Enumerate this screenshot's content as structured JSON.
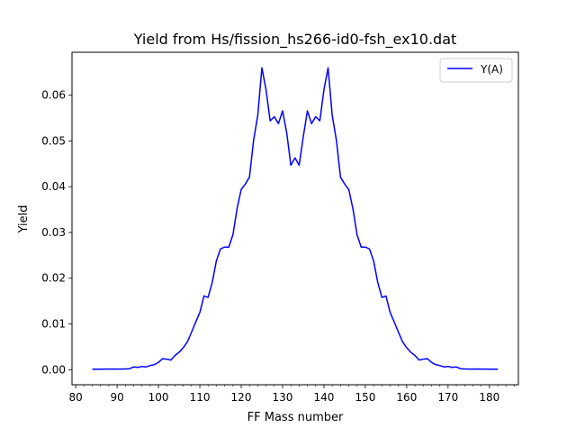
{
  "chart_data": {
    "type": "line",
    "title": "Yield from  Hs/fission_hs266-id0-fsh_ex10.dat",
    "xlabel": "FF Mass number",
    "ylabel": "Yield",
    "xlim": [
      79.1,
      187.0
    ],
    "ylim": [
      -0.0033,
      0.0694
    ],
    "xticks": [
      80,
      90,
      100,
      110,
      120,
      130,
      140,
      150,
      160,
      170,
      180
    ],
    "xtick_labels": [
      "80",
      "90",
      "100",
      "110",
      "120",
      "130",
      "140",
      "150",
      "160",
      "170",
      "180"
    ],
    "yticks": [
      0.0,
      0.01,
      0.02,
      0.03,
      0.04,
      0.05,
      0.06
    ],
    "ytick_labels": [
      "0.00",
      "0.01",
      "0.02",
      "0.03",
      "0.04",
      "0.05",
      "0.06"
    ],
    "minor_xtick_step": 2,
    "grid": false,
    "legend_position": "top-right",
    "series": [
      {
        "name": "Y(A)",
        "color": "#0000ff",
        "x": [
          84,
          85,
          86,
          87,
          88,
          89,
          90,
          91,
          92,
          93,
          94,
          95,
          96,
          97,
          98,
          99,
          100,
          101,
          102,
          103,
          104,
          105,
          106,
          107,
          108,
          109,
          110,
          111,
          112,
          113,
          114,
          115,
          116,
          117,
          118,
          119,
          120,
          121,
          122,
          123,
          124,
          125,
          126,
          127,
          128,
          129,
          130,
          131,
          132,
          133,
          134,
          135,
          136,
          137,
          138,
          139,
          140,
          141,
          142,
          143,
          144,
          145,
          146,
          147,
          148,
          149,
          150,
          151,
          152,
          153,
          154,
          155,
          156,
          157,
          158,
          159,
          160,
          161,
          162,
          163,
          164,
          165,
          166,
          167,
          168,
          169,
          170,
          171,
          172,
          173,
          174,
          175,
          176,
          177,
          178,
          179,
          180,
          181,
          182
        ],
        "y": [
          0.0001,
          0.0001,
          0.0001,
          0.00012,
          0.00012,
          0.00014,
          0.00012,
          0.00012,
          0.00016,
          0.0002,
          0.0006,
          0.0005,
          0.0007,
          0.0006,
          0.0009,
          0.0011,
          0.0016,
          0.0024,
          0.0023,
          0.0021,
          0.0031,
          0.0038,
          0.0048,
          0.0061,
          0.0082,
          0.0104,
          0.0125,
          0.0161,
          0.0158,
          0.0191,
          0.0238,
          0.0264,
          0.0268,
          0.0268,
          0.0295,
          0.0352,
          0.0394,
          0.0406,
          0.0421,
          0.0502,
          0.0556,
          0.066,
          0.0612,
          0.0544,
          0.0553,
          0.0538,
          0.0566,
          0.0518,
          0.0447,
          0.0463,
          0.0447,
          0.0509,
          0.0566,
          0.0538,
          0.0553,
          0.0544,
          0.0612,
          0.066,
          0.0556,
          0.0502,
          0.0421,
          0.0406,
          0.0394,
          0.0352,
          0.0295,
          0.0268,
          0.0268,
          0.0264,
          0.0238,
          0.0191,
          0.0158,
          0.0161,
          0.0125,
          0.0104,
          0.0082,
          0.0061,
          0.0048,
          0.0038,
          0.0031,
          0.0021,
          0.0023,
          0.0024,
          0.0016,
          0.0011,
          0.0009,
          0.0006,
          0.0007,
          0.0005,
          0.0006,
          0.0002,
          0.00016,
          0.00012,
          0.00012,
          0.00014,
          0.00012,
          0.00012,
          0.0001,
          0.0001,
          0.0001
        ]
      }
    ]
  }
}
